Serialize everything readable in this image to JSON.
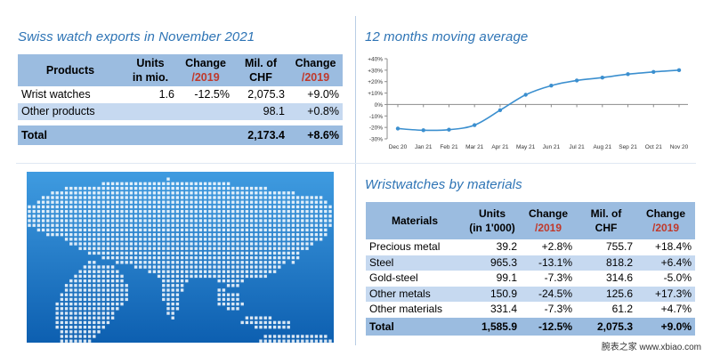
{
  "exports_panel": {
    "title": "Swiss watch exports in November 2021",
    "headers": {
      "products": "Products",
      "units_line1": "Units",
      "units_line2": "in mio.",
      "change_line1": "Change",
      "change_line2": "/2019",
      "chf_line1": "Mil. of",
      "chf_line2": "CHF",
      "change2_line1": "Change",
      "change2_line2": "/2019"
    },
    "rows": [
      {
        "label": "Wrist watches",
        "units": "1.6",
        "change_units": "-12.5%",
        "chf": "2,075.3",
        "change_chf": "+9.0%"
      },
      {
        "label": "Other products",
        "units": "",
        "change_units": "",
        "chf": "98.1",
        "change_chf": "+0.8%"
      }
    ],
    "total": {
      "label": "Total",
      "units": "",
      "change_units": "",
      "chf": "2,173.4",
      "change_chf": "+8.6%"
    }
  },
  "chart_data": {
    "type": "line",
    "title": "12 months moving average",
    "x": [
      "Dec 20",
      "Jan 21",
      "Feb 21",
      "Mar 21",
      "Apr 21",
      "May 21",
      "Jun 21",
      "Jul 21",
      "Aug 21",
      "Sep 21",
      "Oct 21",
      "Nov 20"
    ],
    "series": [
      {
        "values": [
          -21,
          -22.5,
          -22,
          -18,
          -5,
          8.5,
          16.5,
          21,
          23.5,
          26.5,
          28.5,
          30
        ]
      }
    ],
    "ylim": [
      -30,
      40
    ],
    "yticks": [
      "-30%",
      "-20%",
      "-10%",
      "0%",
      "+10%",
      "+20%",
      "+30%",
      "+40%"
    ],
    "yticks_values": [
      -30,
      -20,
      -10,
      0,
      10,
      20,
      30,
      40
    ],
    "grid": false,
    "line_color": "#3b8fcf"
  },
  "map_panel": {
    "dot_color": "#ffffff",
    "background_top": "#3f9be0",
    "background_bottom": "#0d5fb0"
  },
  "materials_panel": {
    "title": "Wristwatches by materials",
    "headers": {
      "materials": "Materials",
      "units_line1": "Units",
      "units_line2": "(in 1'000)",
      "change_line1": "Change",
      "change_line2": "/2019",
      "chf_line1": "Mil. of",
      "chf_line2": "CHF",
      "change2_line1": "Change",
      "change2_line2": "/2019"
    },
    "rows": [
      {
        "label": "Precious metal",
        "units": "39.2",
        "change_units": "+2.8%",
        "chf": "755.7",
        "change_chf": "+18.4%"
      },
      {
        "label": "Steel",
        "units": "965.3",
        "change_units": "-13.1%",
        "chf": "818.2",
        "change_chf": "+6.4%"
      },
      {
        "label": "Gold-steel",
        "units": "99.1",
        "change_units": "-7.3%",
        "chf": "314.6",
        "change_chf": "-5.0%"
      },
      {
        "label": "Other metals",
        "units": "150.9",
        "change_units": "-24.5%",
        "chf": "125.6",
        "change_chf": "+17.3%"
      },
      {
        "label": "Other materials",
        "units": "331.4",
        "change_units": "-7.3%",
        "chf": "61.2",
        "change_chf": "+4.7%"
      }
    ],
    "total": {
      "label": "Total",
      "units": "1,585.9",
      "change_units": "-12.5%",
      "chf": "2,075.3",
      "change_chf": "+9.0%"
    }
  },
  "watermark": "腕表之家 www.xbiao.com",
  "colors": {
    "title_blue": "#2e74b5",
    "header_blue": "#9bbce0",
    "row_blue": "#c6d9f0",
    "change_red": "#c0392b"
  }
}
